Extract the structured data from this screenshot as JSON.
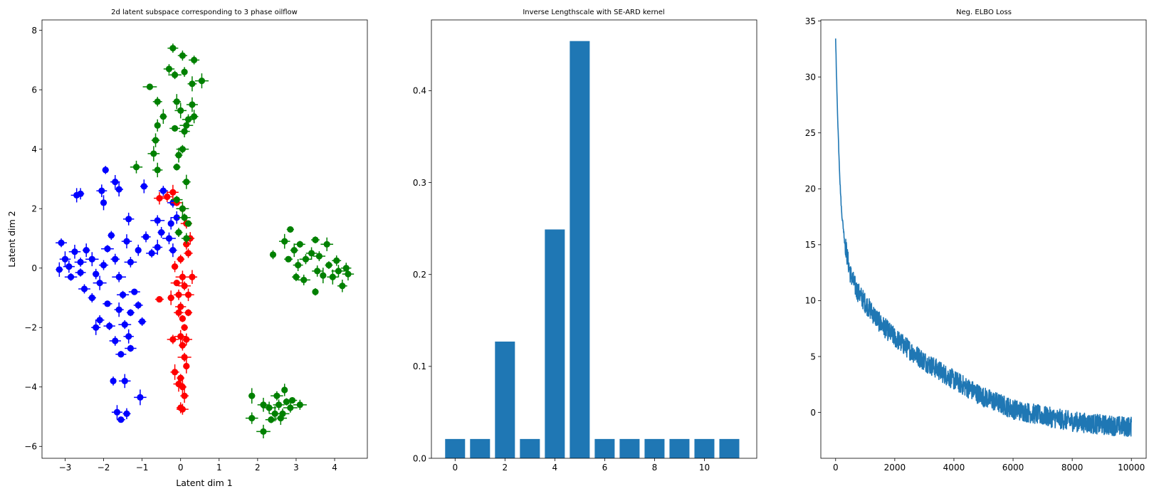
{
  "chart_data": [
    {
      "type": "scatter",
      "title": "2d latent subspace corresponding to 3 phase oilflow",
      "xlabel": "Latent dim 1",
      "ylabel": "Latent dim 2",
      "xlim": [
        -3.6,
        4.85
      ],
      "ylim": [
        -6.4,
        8.35
      ],
      "xticks": [
        -3,
        -2,
        -1,
        0,
        1,
        2,
        3,
        4
      ],
      "yticks": [
        -6,
        -4,
        -2,
        0,
        2,
        4,
        6,
        8
      ],
      "error_bars": true,
      "grid": false,
      "series": [
        {
          "color": "#0000ff",
          "points": [
            [
              -3.1,
              0.85
            ],
            [
              -3.0,
              0.3
            ],
            [
              -2.9,
              0.05
            ],
            [
              -3.15,
              -0.05
            ],
            [
              -2.75,
              0.55
            ],
            [
              -2.6,
              0.2
            ],
            [
              -2.85,
              -0.3
            ],
            [
              -2.6,
              -0.15
            ],
            [
              -2.45,
              0.6
            ],
            [
              -2.3,
              0.3
            ],
            [
              -2.2,
              -0.2
            ],
            [
              -2.5,
              -0.7
            ],
            [
              -2.3,
              -1.0
            ],
            [
              -2.1,
              -0.5
            ],
            [
              -2.0,
              0.1
            ],
            [
              -1.9,
              0.65
            ],
            [
              -1.8,
              1.1
            ],
            [
              -1.7,
              0.3
            ],
            [
              -1.6,
              -0.3
            ],
            [
              -1.5,
              -0.9
            ],
            [
              -1.6,
              -1.4
            ],
            [
              -1.45,
              -1.9
            ],
            [
              -1.35,
              -2.3
            ],
            [
              -1.3,
              -2.7
            ],
            [
              -1.55,
              -2.9
            ],
            [
              -1.7,
              -2.45
            ],
            [
              -1.85,
              -1.95
            ],
            [
              -2.1,
              -1.75
            ],
            [
              -2.2,
              -2.0
            ],
            [
              -1.9,
              -1.2
            ],
            [
              -1.3,
              -1.5
            ],
            [
              -1.2,
              -0.8
            ],
            [
              -1.0,
              -1.8
            ],
            [
              -1.1,
              -1.25
            ],
            [
              -1.3,
              0.2
            ],
            [
              -1.4,
              0.9
            ],
            [
              -1.35,
              1.65
            ],
            [
              -1.1,
              0.6
            ],
            [
              -0.9,
              1.05
            ],
            [
              -0.75,
              0.5
            ],
            [
              -0.6,
              0.7
            ],
            [
              -0.5,
              1.2
            ],
            [
              -0.3,
              1.0
            ],
            [
              -0.25,
              1.5
            ],
            [
              -0.2,
              2.2
            ],
            [
              -0.1,
              1.7
            ],
            [
              -0.2,
              0.6
            ],
            [
              -0.6,
              1.6
            ],
            [
              -2.6,
              2.5
            ],
            [
              -2.7,
              2.45
            ],
            [
              -2.05,
              2.6
            ],
            [
              -2.0,
              2.2
            ],
            [
              -1.95,
              3.3
            ],
            [
              -1.7,
              2.9
            ],
            [
              -1.6,
              2.65
            ],
            [
              -0.95,
              2.75
            ],
            [
              -0.45,
              2.6
            ],
            [
              -1.75,
              -3.8
            ],
            [
              -1.45,
              -3.8
            ],
            [
              -1.05,
              -4.35
            ],
            [
              -1.65,
              -4.85
            ],
            [
              -1.55,
              -5.1
            ],
            [
              -1.4,
              -4.9
            ]
          ]
        },
        {
          "color": "#ff0000",
          "points": [
            [
              -0.55,
              2.35
            ],
            [
              -0.35,
              2.4
            ],
            [
              -0.2,
              2.55
            ],
            [
              -0.1,
              2.2
            ],
            [
              0.05,
              2.0
            ],
            [
              0.15,
              1.5
            ],
            [
              0.25,
              1.0
            ],
            [
              0.2,
              0.5
            ],
            [
              0.0,
              0.3
            ],
            [
              -0.15,
              0.05
            ],
            [
              0.05,
              -0.3
            ],
            [
              0.3,
              -0.3
            ],
            [
              0.1,
              -0.6
            ],
            [
              -0.05,
              -0.9
            ],
            [
              -0.25,
              -1.0
            ],
            [
              -0.55,
              -1.05
            ],
            [
              0.0,
              -1.3
            ],
            [
              0.05,
              -1.7
            ],
            [
              0.1,
              -2.0
            ],
            [
              0.0,
              -2.3
            ],
            [
              -0.2,
              -2.4
            ],
            [
              0.05,
              -2.6
            ],
            [
              0.1,
              -3.0
            ],
            [
              0.15,
              -3.3
            ],
            [
              -0.15,
              -3.5
            ],
            [
              0.0,
              -3.7
            ],
            [
              -0.05,
              -3.9
            ],
            [
              0.05,
              -4.0
            ],
            [
              0.1,
              -4.3
            ],
            [
              0.0,
              -4.7
            ],
            [
              0.05,
              -4.75
            ],
            [
              0.2,
              -0.9
            ],
            [
              0.2,
              -1.5
            ],
            [
              -0.1,
              -0.5
            ],
            [
              0.15,
              0.8
            ],
            [
              -0.05,
              -1.5
            ],
            [
              0.15,
              -2.4
            ]
          ]
        },
        {
          "color": "#008000",
          "points": [
            [
              -0.2,
              7.4
            ],
            [
              0.05,
              7.15
            ],
            [
              0.35,
              7.0
            ],
            [
              0.55,
              6.3
            ],
            [
              -0.3,
              6.7
            ],
            [
              -0.15,
              6.5
            ],
            [
              0.1,
              6.6
            ],
            [
              0.3,
              6.2
            ],
            [
              -0.8,
              6.1
            ],
            [
              -0.6,
              5.6
            ],
            [
              -0.45,
              5.1
            ],
            [
              -0.1,
              5.6
            ],
            [
              0.0,
              5.3
            ],
            [
              0.2,
              5.0
            ],
            [
              0.3,
              5.5
            ],
            [
              0.35,
              5.1
            ],
            [
              0.1,
              4.6
            ],
            [
              -0.15,
              4.7
            ],
            [
              0.15,
              4.8
            ],
            [
              -0.6,
              4.8
            ],
            [
              -0.65,
              4.3
            ],
            [
              -0.7,
              3.85
            ],
            [
              -0.6,
              3.3
            ],
            [
              -0.1,
              3.4
            ],
            [
              -0.05,
              3.8
            ],
            [
              0.05,
              4.0
            ],
            [
              0.15,
              2.9
            ],
            [
              -1.15,
              3.4
            ],
            [
              -0.1,
              2.3
            ],
            [
              0.05,
              2.0
            ],
            [
              0.1,
              1.7
            ],
            [
              0.2,
              1.5
            ],
            [
              -0.05,
              1.2
            ],
            [
              0.15,
              1.0
            ],
            [
              2.4,
              0.45
            ],
            [
              2.7,
              0.9
            ],
            [
              2.85,
              1.3
            ],
            [
              2.95,
              0.6
            ],
            [
              3.05,
              0.1
            ],
            [
              3.1,
              0.8
            ],
            [
              3.25,
              0.3
            ],
            [
              3.4,
              0.5
            ],
            [
              3.5,
              0.95
            ],
            [
              3.55,
              -0.1
            ],
            [
              3.6,
              0.4
            ],
            [
              3.7,
              -0.25
            ],
            [
              3.8,
              0.8
            ],
            [
              3.85,
              0.1
            ],
            [
              3.95,
              -0.3
            ],
            [
              4.05,
              0.25
            ],
            [
              4.1,
              -0.1
            ],
            [
              4.2,
              -0.6
            ],
            [
              4.3,
              0.0
            ],
            [
              4.35,
              -0.2
            ],
            [
              3.0,
              -0.3
            ],
            [
              3.5,
              -0.8
            ],
            [
              3.2,
              -0.4
            ],
            [
              2.8,
              0.3
            ],
            [
              1.85,
              -4.3
            ],
            [
              1.85,
              -5.05
            ],
            [
              2.15,
              -5.5
            ],
            [
              2.15,
              -4.6
            ],
            [
              2.3,
              -4.7
            ],
            [
              2.35,
              -5.1
            ],
            [
              2.5,
              -4.3
            ],
            [
              2.55,
              -4.6
            ],
            [
              2.65,
              -4.9
            ],
            [
              2.7,
              -4.1
            ],
            [
              2.75,
              -4.5
            ],
            [
              2.85,
              -4.7
            ],
            [
              2.9,
              -4.45
            ],
            [
              3.1,
              -4.6
            ],
            [
              2.45,
              -4.9
            ],
            [
              2.6,
              -5.05
            ]
          ]
        }
      ]
    },
    {
      "type": "bar",
      "title": "Inverse Lengthscale with SE-ARD kernel",
      "xlabel": "",
      "ylabel": "",
      "categories": [
        0,
        1,
        2,
        3,
        4,
        5,
        6,
        7,
        8,
        9,
        10,
        11
      ],
      "values": [
        0.021,
        0.021,
        0.127,
        0.021,
        0.249,
        0.454,
        0.021,
        0.021,
        0.021,
        0.021,
        0.021,
        0.021
      ],
      "color": "#1f77b4",
      "xlim": [
        -0.95,
        12.1
      ],
      "ylim": [
        0.0,
        0.477
      ],
      "xticks": [
        0,
        2,
        4,
        6,
        8,
        10
      ],
      "yticks": [
        0.0,
        0.1,
        0.2,
        0.3,
        0.4
      ],
      "grid": false
    },
    {
      "type": "line",
      "title": "Neg. ELBO Loss",
      "xlabel": "",
      "ylabel": "",
      "color": "#1f77b4",
      "x": [
        0,
        50,
        100,
        150,
        200,
        300,
        400,
        500,
        700,
        1000,
        1500,
        2000,
        2500,
        3000,
        4000,
        5000,
        6000,
        7000,
        8000,
        9000,
        10000
      ],
      "y": [
        33.5,
        28.0,
        24.0,
        20.5,
        18.0,
        15.5,
        13.8,
        12.4,
        11.0,
        9.8,
        8.0,
        6.7,
        5.6,
        4.6,
        2.9,
        1.4,
        0.3,
        -0.3,
        -0.8,
        -1.1,
        -1.3
      ],
      "noise_band": 0.9,
      "xlim": [
        -500,
        10500
      ],
      "ylim": [
        -4.1,
        35.1
      ],
      "xticks": [
        0,
        2000,
        4000,
        6000,
        8000,
        10000
      ],
      "yticks": [
        0,
        5,
        10,
        15,
        20,
        25,
        30,
        35
      ],
      "grid": false
    }
  ]
}
